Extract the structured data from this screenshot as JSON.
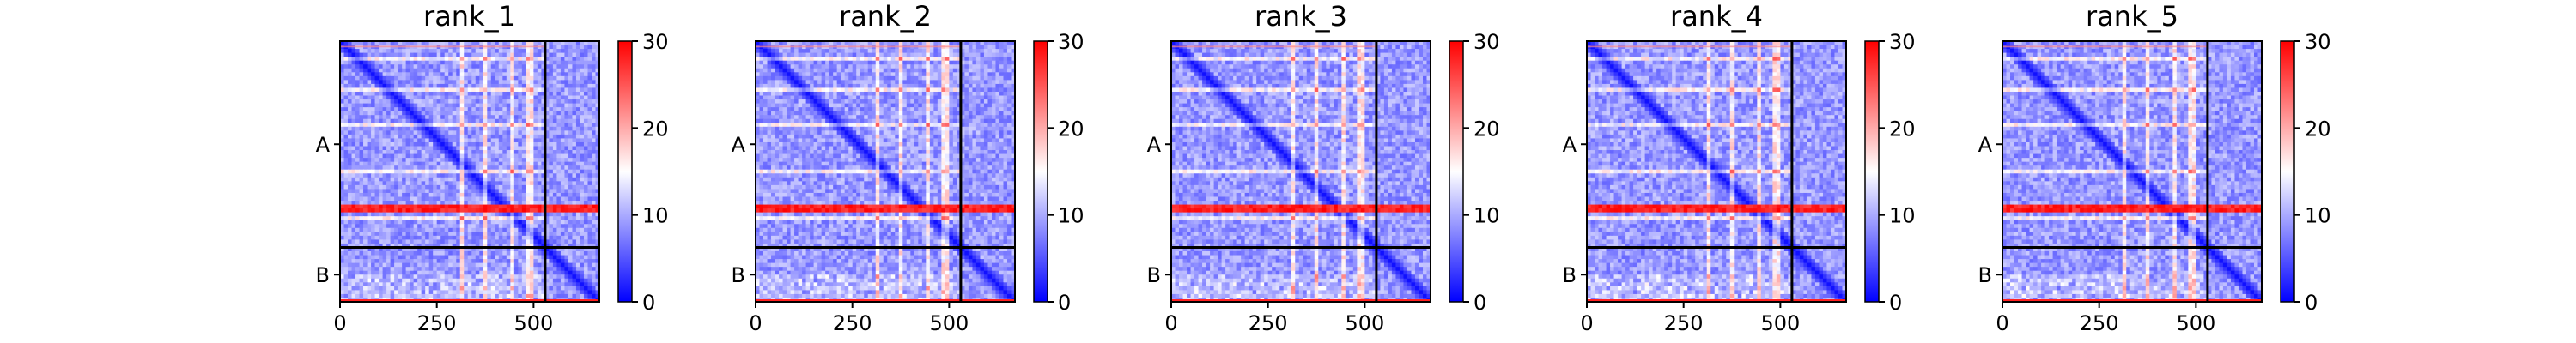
{
  "figure": {
    "colorbar": {
      "colormap": [
        "#0000ff",
        "#ffffff",
        "#ff0000"
      ],
      "min": 0,
      "max": 30,
      "ticks": [
        0,
        10,
        20,
        30
      ]
    }
  },
  "chart_data": [
    {
      "type": "heatmap",
      "title": "rank_1",
      "xlabel": "",
      "ylabel": "",
      "xlim": [
        0,
        670
      ],
      "ylim": [
        670,
        0
      ],
      "xticks": [
        0,
        250,
        500
      ],
      "chain_boundary": 530,
      "chains": [
        {
          "label": "A",
          "start": 0,
          "end": 530
        },
        {
          "label": "B",
          "start": 530,
          "end": 670
        }
      ],
      "red_band_strength": 1.0,
      "colorbar_range": [
        0,
        30
      ],
      "colorbar_ticks": [
        0,
        10,
        20,
        30
      ]
    },
    {
      "type": "heatmap",
      "title": "rank_2",
      "xlabel": "",
      "ylabel": "",
      "xlim": [
        0,
        670
      ],
      "ylim": [
        670,
        0
      ],
      "xticks": [
        0,
        250,
        500
      ],
      "chain_boundary": 530,
      "chains": [
        {
          "label": "A",
          "start": 0,
          "end": 530
        },
        {
          "label": "B",
          "start": 530,
          "end": 670
        }
      ],
      "red_band_strength": 1.0,
      "colorbar_range": [
        0,
        30
      ],
      "colorbar_ticks": [
        0,
        10,
        20,
        30
      ]
    },
    {
      "type": "heatmap",
      "title": "rank_3",
      "xlabel": "",
      "ylabel": "",
      "xlim": [
        0,
        670
      ],
      "ylim": [
        670,
        0
      ],
      "xticks": [
        0,
        250,
        500
      ],
      "chain_boundary": 530,
      "chains": [
        {
          "label": "A",
          "start": 0,
          "end": 530
        },
        {
          "label": "B",
          "start": 530,
          "end": 670
        }
      ],
      "red_band_strength": 1.0,
      "colorbar_range": [
        0,
        30
      ],
      "colorbar_ticks": [
        0,
        10,
        20,
        30
      ]
    },
    {
      "type": "heatmap",
      "title": "rank_4",
      "xlabel": "",
      "ylabel": "",
      "xlim": [
        0,
        670
      ],
      "ylim": [
        670,
        0
      ],
      "xticks": [
        0,
        250,
        500
      ],
      "chain_boundary": 530,
      "chains": [
        {
          "label": "A",
          "start": 0,
          "end": 530
        },
        {
          "label": "B",
          "start": 530,
          "end": 670
        }
      ],
      "red_band_strength": 1.0,
      "colorbar_range": [
        0,
        30
      ],
      "colorbar_ticks": [
        0,
        10,
        20,
        30
      ]
    },
    {
      "type": "heatmap",
      "title": "rank_5",
      "xlabel": "",
      "ylabel": "",
      "xlim": [
        0,
        670
      ],
      "ylim": [
        670,
        0
      ],
      "xticks": [
        0,
        250,
        500
      ],
      "chain_boundary": 530,
      "chains": [
        {
          "label": "A",
          "start": 0,
          "end": 530
        },
        {
          "label": "B",
          "start": 530,
          "end": 670
        }
      ],
      "red_band_strength": 1.0,
      "colorbar_range": [
        0,
        30
      ],
      "colorbar_ticks": [
        0,
        10,
        20,
        30
      ]
    }
  ]
}
